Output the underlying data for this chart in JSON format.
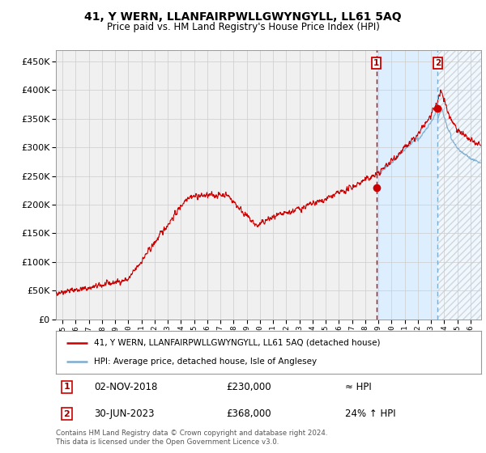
{
  "title": "41, Y WERN, LLANFAIRPWLLGWYNGYLL, LL61 5AQ",
  "subtitle": "Price paid vs. HM Land Registry's House Price Index (HPI)",
  "legend_line1": "41, Y WERN, LLANFAIRPWLLGWYNGYLL, LL61 5AQ (detached house)",
  "legend_line2": "HPI: Average price, detached house, Isle of Anglesey",
  "annotation1_date": "02-NOV-2018",
  "annotation1_price": "£230,000",
  "annotation1_hpi": "≈ HPI",
  "annotation2_date": "30-JUN-2023",
  "annotation2_price": "£368,000",
  "annotation2_hpi": "24% ↑ HPI",
  "footer1": "Contains HM Land Registry data © Crown copyright and database right 2024.",
  "footer2": "This data is licensed under the Open Government Licence v3.0.",
  "line_color": "#cc0000",
  "hpi_color": "#7aadcf",
  "background_color": "#ffffff",
  "plot_bg_color": "#f0f0f0",
  "shaded_region_color": "#ddeeff",
  "grid_color": "#cccccc",
  "ylim": [
    0,
    470000
  ],
  "yticks": [
    0,
    50000,
    100000,
    150000,
    200000,
    250000,
    300000,
    350000,
    400000,
    450000
  ],
  "xlim_start": 1994.5,
  "xlim_end": 2026.8,
  "marker1_x": 2018.84,
  "marker1_y": 230000,
  "marker2_x": 2023.5,
  "marker2_y": 368000,
  "vline1_x": 2018.84,
  "vline2_x": 2023.5,
  "shade_start": 2018.84,
  "hatch_start": 2023.5,
  "xtick_years": [
    1995,
    1996,
    1997,
    1998,
    1999,
    2000,
    2001,
    2002,
    2003,
    2004,
    2005,
    2006,
    2007,
    2008,
    2009,
    2010,
    2011,
    2012,
    2013,
    2014,
    2015,
    2016,
    2017,
    2018,
    2019,
    2020,
    2021,
    2022,
    2023,
    2024,
    2025,
    2026
  ]
}
